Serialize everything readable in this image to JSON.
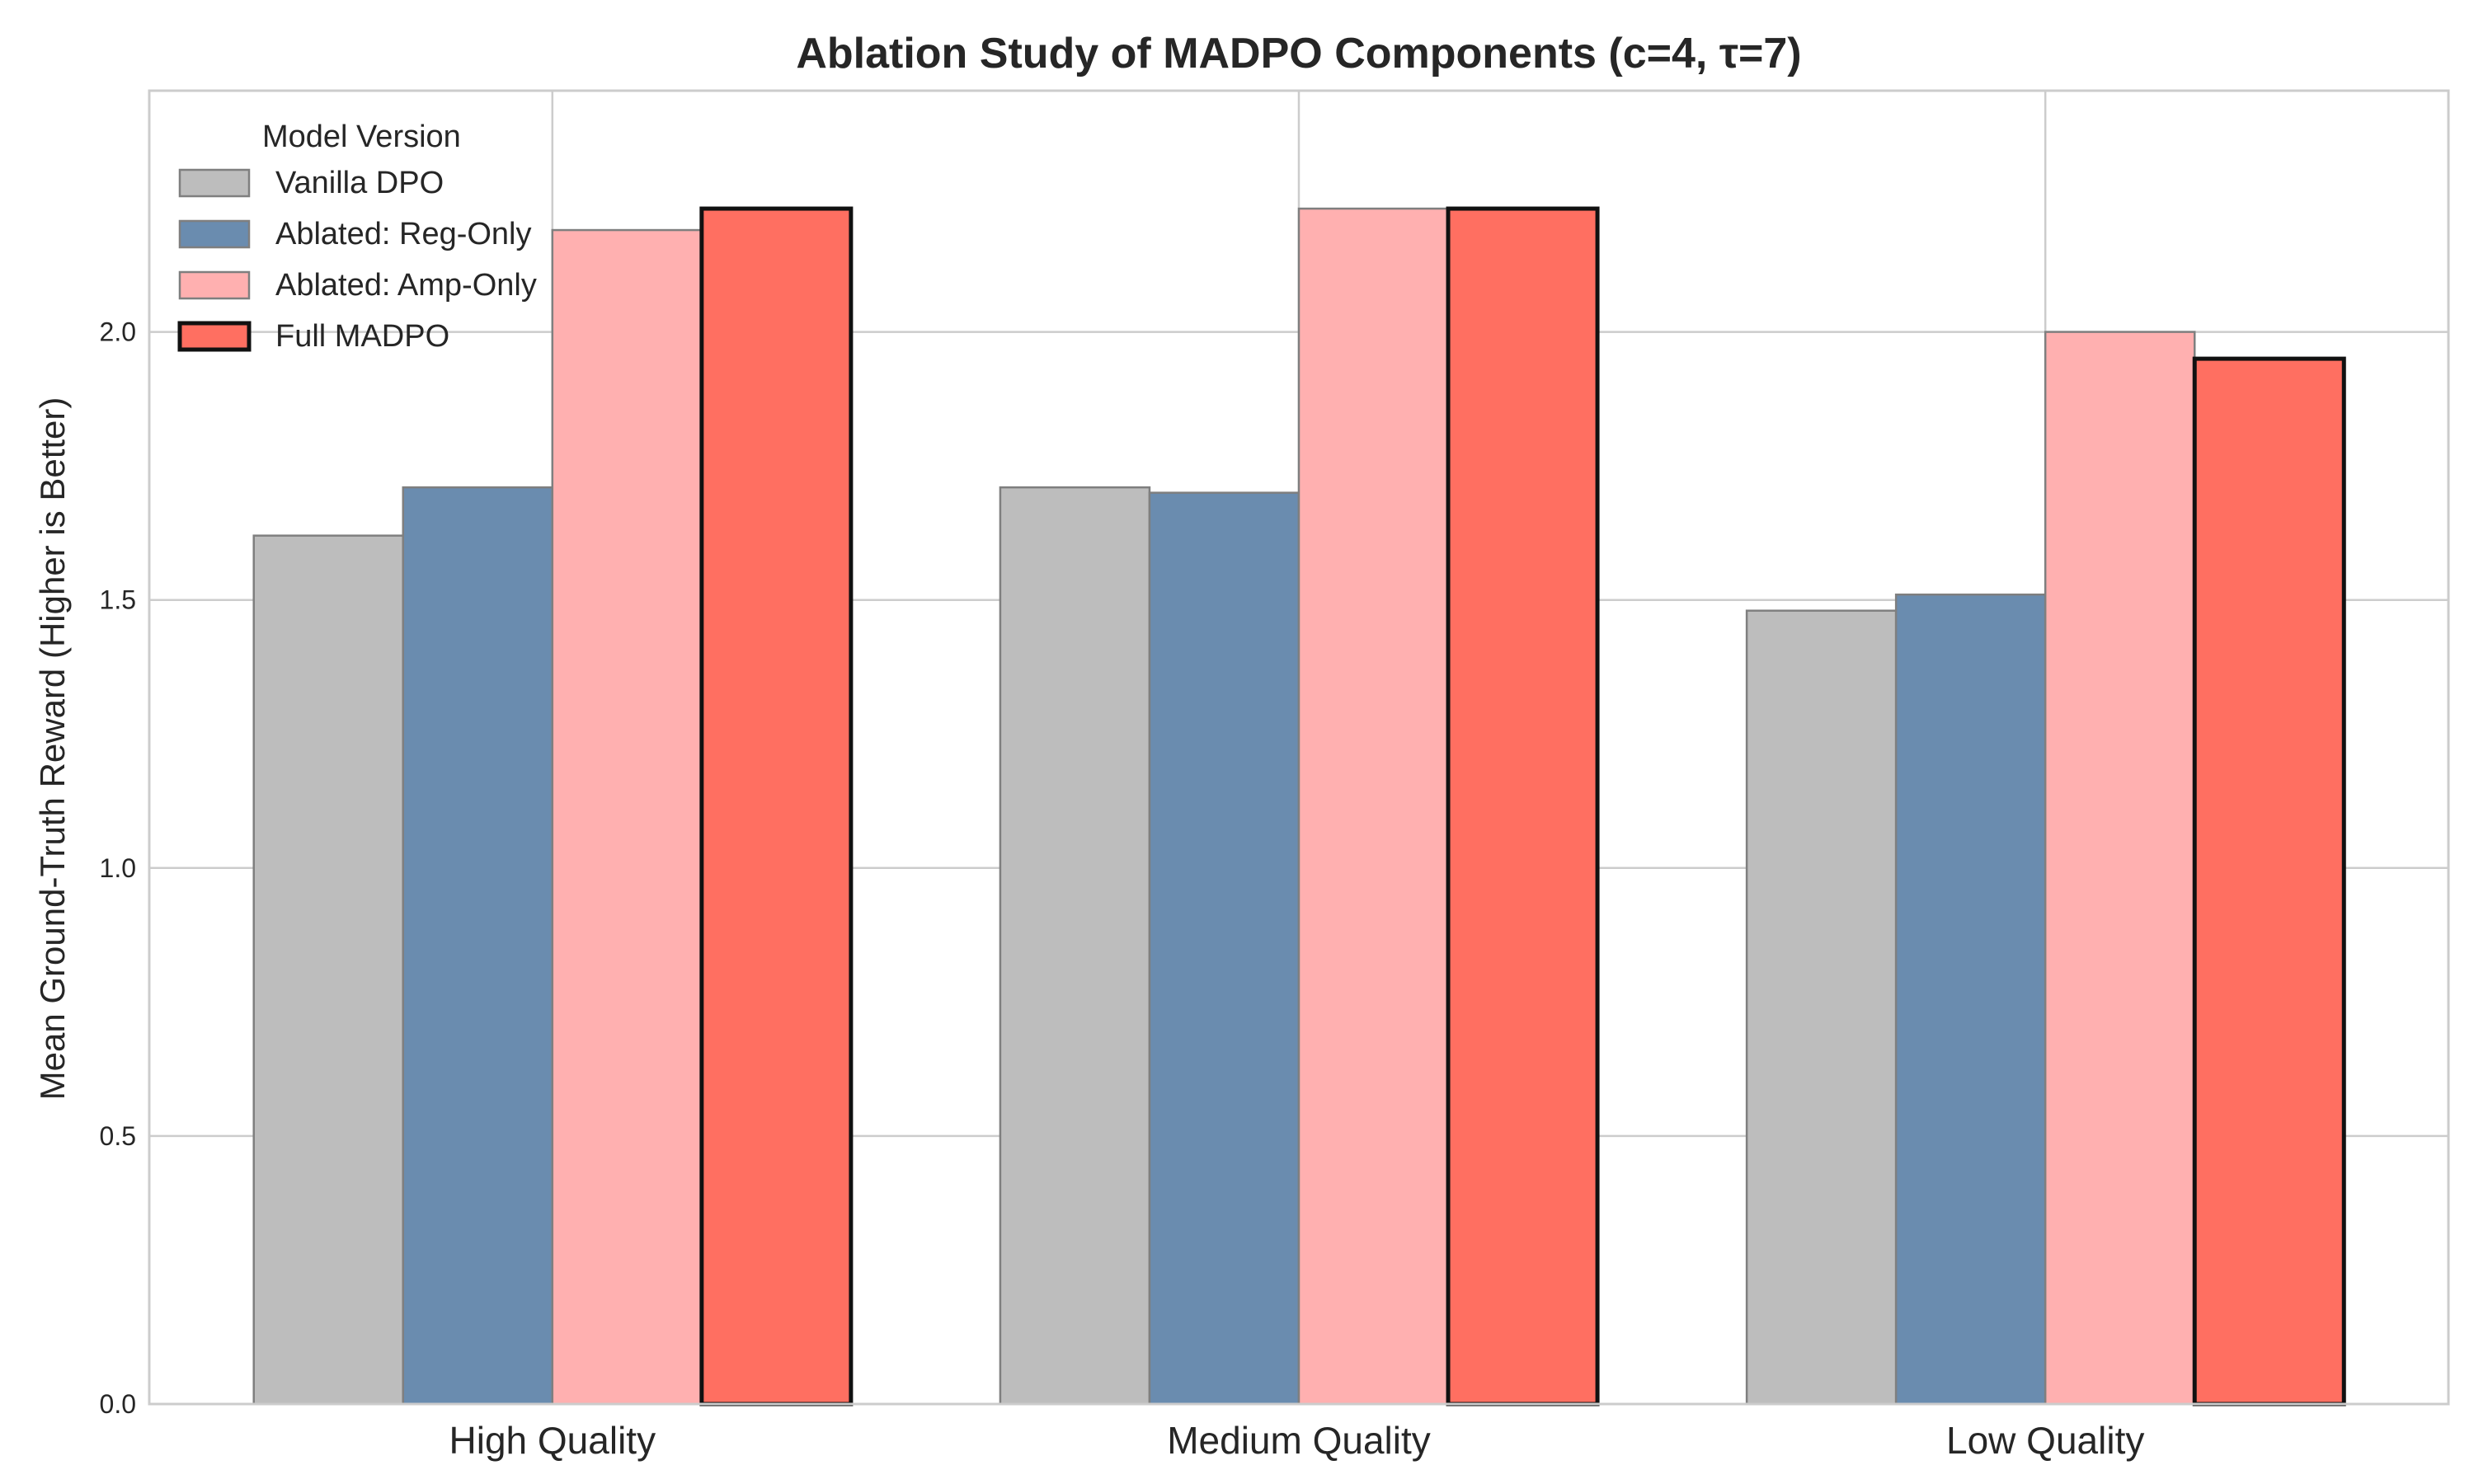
{
  "chart_data": {
    "type": "bar",
    "title": "Ablation Study of MADPO Components (c=4, τ=7)",
    "xlabel": "",
    "ylabel": "Mean Ground-Truth Reward (Higher is Better)",
    "ylim": [
      0,
      2.45
    ],
    "yticks": [
      0.0,
      0.5,
      1.0,
      1.5,
      2.0
    ],
    "ytick_labels": [
      "0.0",
      "0.5",
      "1.0",
      "1.5",
      "2.0"
    ],
    "grid": true,
    "legend_title": "Model Version",
    "legend_position": "top-left",
    "categories": [
      "High Quality",
      "Medium Quality",
      "Low Quality"
    ],
    "series": [
      {
        "name": "Vanilla DPO",
        "values": [
          1.62,
          1.71,
          1.48
        ],
        "color": "#bdbdbd",
        "edge": "#7f7f7f",
        "bold_edge": false
      },
      {
        "name": "Ablated: Reg-Only",
        "values": [
          1.71,
          1.7,
          1.51
        ],
        "color": "#6a8caf",
        "edge": "#7f7f7f",
        "bold_edge": false
      },
      {
        "name": "Ablated: Amp-Only",
        "values": [
          2.19,
          2.23,
          2.0
        ],
        "color": "#ffb0b0",
        "edge": "#7f7f7f",
        "bold_edge": false
      },
      {
        "name": "Full MADPO",
        "values": [
          2.23,
          2.23,
          1.95
        ],
        "color": "#ff6f61",
        "edge": "#111111",
        "bold_edge": true
      }
    ]
  }
}
